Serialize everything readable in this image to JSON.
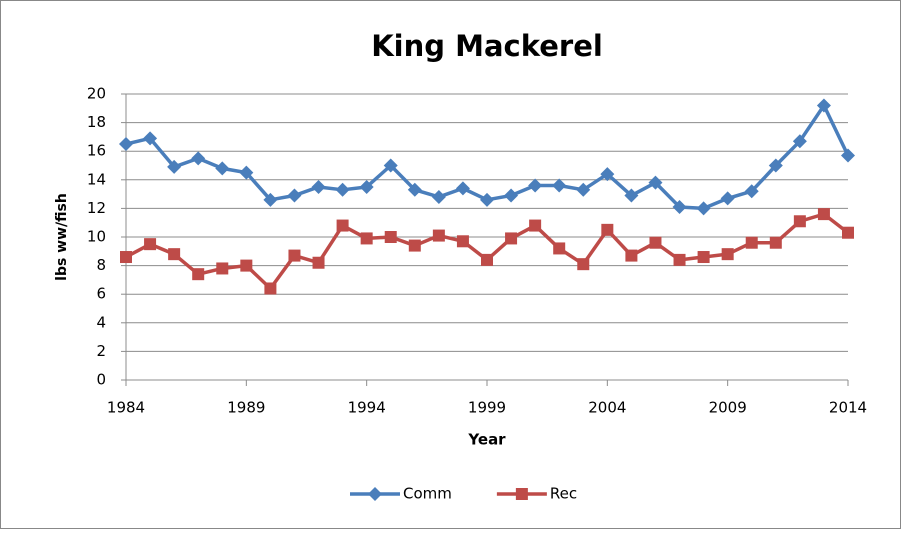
{
  "chart_data": {
    "type": "line",
    "title": "King Mackerel",
    "x_label": "Year",
    "y_label": "lbs ww/fish",
    "x": [
      1984,
      1985,
      1986,
      1987,
      1988,
      1989,
      1990,
      1991,
      1992,
      1993,
      1994,
      1995,
      1996,
      1997,
      1998,
      1999,
      2000,
      2001,
      2002,
      2003,
      2004,
      2005,
      2006,
      2007,
      2008,
      2009,
      2010,
      2011,
      2012,
      2013,
      2014
    ],
    "series": [
      {
        "name": "Comm",
        "color": "#4a7ebb",
        "marker": "diamond",
        "values": [
          16.5,
          16.9,
          14.9,
          15.5,
          14.8,
          14.5,
          12.6,
          12.9,
          13.5,
          13.3,
          13.5,
          15.0,
          13.3,
          12.8,
          13.4,
          12.6,
          12.9,
          13.6,
          13.6,
          13.3,
          14.4,
          12.9,
          13.8,
          12.1,
          12.0,
          12.7,
          13.2,
          15.0,
          16.7,
          19.2,
          15.7
        ]
      },
      {
        "name": "Rec",
        "color": "#be4b48",
        "marker": "square",
        "values": [
          8.6,
          9.5,
          8.8,
          7.4,
          7.8,
          8.0,
          6.4,
          8.7,
          8.2,
          10.8,
          9.9,
          10.0,
          9.4,
          10.1,
          9.7,
          8.4,
          9.9,
          10.8,
          9.2,
          8.1,
          10.5,
          8.7,
          9.6,
          8.4,
          8.6,
          8.8,
          9.6,
          9.6,
          11.1,
          11.6,
          10.3
        ]
      }
    ],
    "xlim": [
      1984,
      2014
    ],
    "xticks": [
      1984,
      1989,
      1994,
      1999,
      2004,
      2009,
      2014
    ],
    "ylim": [
      0,
      20
    ],
    "yticks": [
      0,
      2,
      4,
      6,
      8,
      10,
      12,
      14,
      16,
      18,
      20
    ],
    "grid": true,
    "legend": "bottom"
  }
}
